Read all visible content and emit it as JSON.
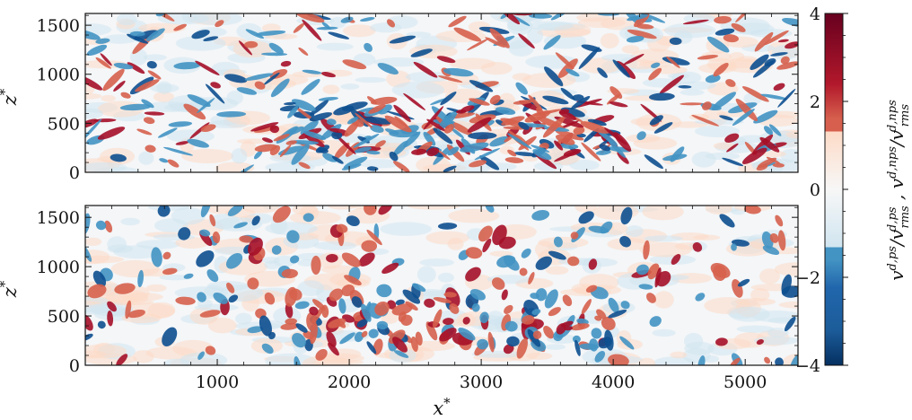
{
  "chart_data": [
    {
      "type": "heatmap",
      "panel": "top",
      "ylabel": "z*",
      "xlim": [
        0,
        5400
      ],
      "ylim": [
        0,
        1620
      ],
      "yticks": [
        0,
        500,
        1000,
        1500
      ],
      "yticklabels": [
        "0",
        "500",
        "1000",
        "1500"
      ],
      "xticklabels_shown": false
    },
    {
      "type": "heatmap",
      "panel": "bottom",
      "xlabel": "x*",
      "ylabel": "z*",
      "xlim": [
        0,
        5400
      ],
      "ylim": [
        0,
        1620
      ],
      "xticks": [
        1000,
        2000,
        3000,
        4000,
        5000
      ],
      "xticklabels": [
        "1000",
        "2000",
        "3000",
        "4000",
        "5000"
      ],
      "yticks": [
        0,
        500,
        1000,
        1500
      ],
      "yticklabels": [
        "0",
        "500",
        "1000",
        "1500"
      ]
    }
  ],
  "colorbar": {
    "label": "v^{d,ps}/v^{d,ps}_{rms} ,   v^{d,nps}/v^{d,nps}_{rms}",
    "label_part1": "v",
    "label_part1_sup": "d,ps",
    "label_slash": "/v",
    "label_part1_den_sup": "d,ps",
    "label_part1_den_sub": "rms",
    "label_comma": " , ",
    "label_part2": "v",
    "label_part2_sup": "d,nps",
    "label_part2_slash": "/v",
    "label_part2_den_sup": "d,nps",
    "label_part2_den_sub": "rms",
    "range": [
      -4,
      4
    ],
    "ticks": [
      -4,
      -2,
      0,
      2,
      4
    ],
    "ticklabels": [
      "−4",
      "−2",
      "0",
      "2",
      "4"
    ],
    "colormap": "RdBu_r",
    "colors": {
      "dark_red": "#67001f",
      "red": "#d6604d",
      "light_red": "#fddbc7",
      "white": "#f7f7f7",
      "light_blue": "#d1e5f0",
      "blue": "#4393c3",
      "dark_blue": "#053061"
    }
  }
}
